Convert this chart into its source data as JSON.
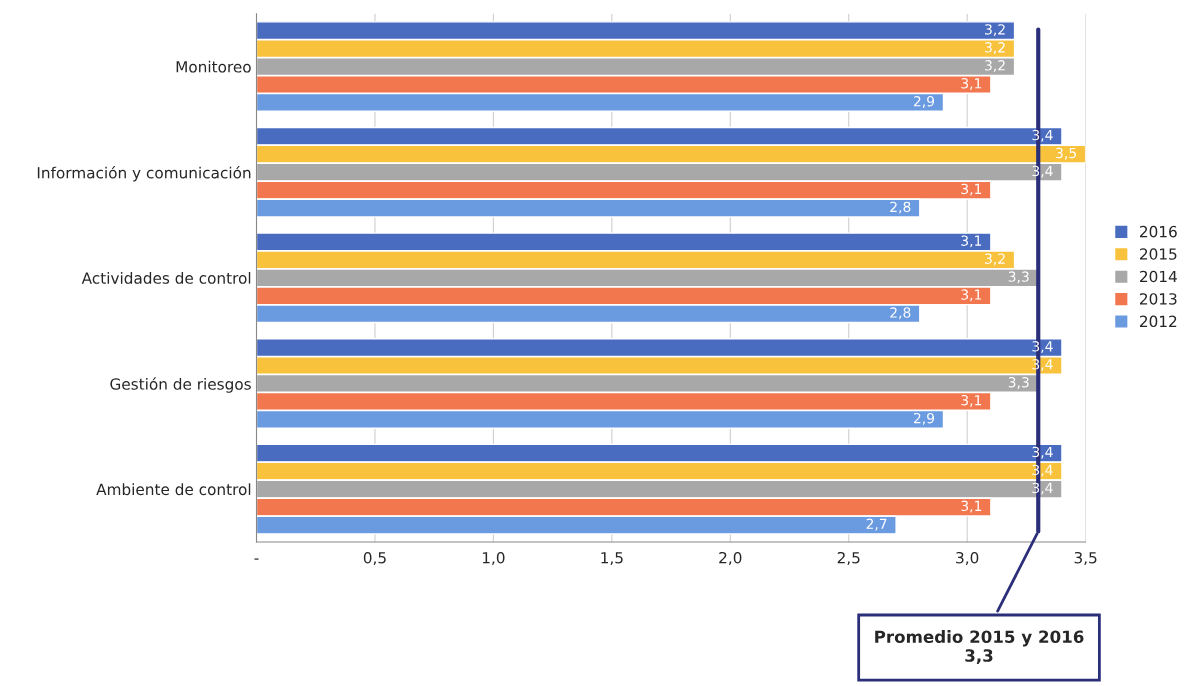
{
  "chart_data": {
    "type": "bar",
    "orientation": "horizontal",
    "categories": [
      "Monitoreo",
      "Información y comunicación",
      "Actividades de control",
      "Gestión de riesgos",
      "Ambiente de control"
    ],
    "series": [
      {
        "name": "2016",
        "color": "#4a6cc0",
        "values": [
          3.2,
          3.4,
          3.1,
          3.4,
          3.4
        ],
        "value_labels": [
          "3,2",
          "3,4",
          "3,1",
          "3,4",
          "3,4"
        ]
      },
      {
        "name": "2015",
        "color": "#f9c23c",
        "values": [
          3.2,
          3.5,
          3.2,
          3.4,
          3.4
        ],
        "value_labels": [
          "3,2",
          "3,5",
          "3,2",
          "3,4",
          "3,4"
        ]
      },
      {
        "name": "2014",
        "color": "#a8a8a8",
        "values": [
          3.2,
          3.4,
          3.3,
          3.3,
          3.4
        ],
        "value_labels": [
          "3,2",
          "3,4",
          "3,3",
          "3,3",
          "3,4"
        ]
      },
      {
        "name": "2013",
        "color": "#f2774f",
        "values": [
          3.1,
          3.1,
          3.1,
          3.1,
          3.1
        ],
        "value_labels": [
          "3,1",
          "3,1",
          "3,1",
          "3,1",
          "3,1"
        ]
      },
      {
        "name": "2012",
        "color": "#6a9ae0",
        "values": [
          2.9,
          2.8,
          2.8,
          2.9,
          2.7
        ],
        "value_labels": [
          "2,9",
          "2,8",
          "2,8",
          "2,9",
          "2,7"
        ]
      }
    ],
    "xlim": [
      0,
      3.5
    ],
    "xticks": [
      {
        "value": 0,
        "label": "-"
      },
      {
        "value": 0.5,
        "label": "0,5"
      },
      {
        "value": 1.0,
        "label": "1,0"
      },
      {
        "value": 1.5,
        "label": "1,5"
      },
      {
        "value": 2.0,
        "label": "2,0"
      },
      {
        "value": 2.5,
        "label": "2,5"
      },
      {
        "value": 3.0,
        "label": "3,0"
      },
      {
        "value": 3.5,
        "label": "3,5"
      }
    ],
    "grid": "x",
    "legend": "right",
    "ref_lines": [
      {
        "axis": "x",
        "value": 3.3,
        "label": "Promedio 2015 y 2016\n3,3",
        "color": "#2b2f7a"
      }
    ]
  }
}
